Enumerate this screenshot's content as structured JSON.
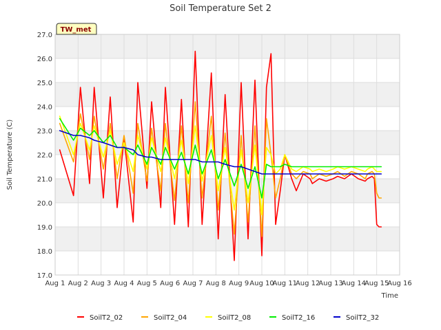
{
  "chart_data": {
    "type": "line",
    "title": "Soil Temperature Set 2",
    "xlabel": "Time",
    "ylabel": "Soil Temperature (C)",
    "site_label": "TW_met",
    "x_ticks": [
      "Aug 1",
      "Aug 2",
      "Aug 3",
      "Aug 4",
      "Aug 5",
      "Aug 6",
      "Aug 7",
      "Aug 8",
      "Aug 9",
      "Aug 10",
      "Aug 11",
      "Aug 12",
      "Aug 13",
      "Aug 14",
      "Aug 15",
      "Aug 16"
    ],
    "y_ticks": [
      "17.0",
      "18.0",
      "19.0",
      "20.0",
      "21.0",
      "22.0",
      "23.0",
      "24.0",
      "25.0",
      "26.0",
      "27.0"
    ],
    "ylim": [
      17,
      27
    ],
    "xlim_days": [
      1,
      16
    ],
    "grid": true,
    "background_bands": true,
    "legend_position": "bottom",
    "x": [
      1.2,
      1.8,
      2.1,
      2.5,
      2.7,
      3.1,
      3.4,
      3.7,
      4.0,
      4.4,
      4.6,
      5.0,
      5.2,
      5.6,
      5.8,
      6.2,
      6.5,
      6.8,
      7.1,
      7.4,
      7.8,
      8.1,
      8.4,
      8.8,
      9.1,
      9.4,
      9.7,
      10.0,
      10.2,
      10.4,
      10.6,
      10.8,
      11.0,
      11.3,
      11.5,
      11.8,
      12.1,
      12.2,
      12.5,
      12.8,
      13.1,
      13.3,
      13.6,
      13.9,
      14.2,
      14.5,
      14.6,
      14.8,
      14.9,
      15.0,
      15.1,
      15.2
    ],
    "series": [
      {
        "name": "SoilT2_02",
        "color": "#ff0000",
        "values": [
          22.2,
          20.3,
          24.8,
          20.8,
          24.8,
          20.2,
          24.4,
          19.8,
          22.7,
          19.2,
          25.0,
          20.6,
          24.2,
          19.8,
          24.8,
          19.1,
          24.3,
          19.0,
          26.3,
          19.1,
          25.4,
          18.5,
          24.5,
          17.6,
          25.0,
          18.5,
          25.1,
          17.8,
          24.8,
          26.2,
          19.1,
          20.5,
          22.0,
          21.0,
          20.5,
          21.2,
          21.0,
          20.8,
          21.0,
          20.9,
          21.0,
          21.1,
          21.0,
          21.2,
          21.0,
          20.9,
          21.0,
          21.1,
          21.0,
          19.1,
          19.0,
          19.0
        ]
      },
      {
        "name": "SoilT2_04",
        "color": "#ffa500",
        "values": [
          23.3,
          21.7,
          23.7,
          21.8,
          23.6,
          21.4,
          23.3,
          21.0,
          22.8,
          20.4,
          23.3,
          20.9,
          23.1,
          20.5,
          23.3,
          20.1,
          23.2,
          20.0,
          24.2,
          20.2,
          23.6,
          19.7,
          22.9,
          18.7,
          22.8,
          19.2,
          23.2,
          18.6,
          23.5,
          22.0,
          20.2,
          21.0,
          22.0,
          21.2,
          21.0,
          21.3,
          21.2,
          21.0,
          21.2,
          21.1,
          21.2,
          21.3,
          21.1,
          21.3,
          21.2,
          21.0,
          21.2,
          21.3,
          21.2,
          20.4,
          20.2,
          20.2
        ]
      },
      {
        "name": "SoilT2_08",
        "color": "#ffff00",
        "values": [
          23.6,
          22.0,
          23.3,
          22.2,
          23.2,
          21.9,
          23.0,
          21.6,
          22.5,
          21.3,
          22.8,
          21.4,
          22.7,
          21.3,
          22.7,
          21.0,
          22.6,
          20.8,
          23.2,
          20.9,
          22.8,
          20.5,
          22.3,
          19.7,
          22.2,
          20.0,
          22.4,
          19.5,
          22.3,
          22.0,
          21.2,
          21.4,
          22.0,
          21.4,
          21.3,
          21.5,
          21.4,
          21.3,
          21.4,
          21.3,
          21.4,
          21.5,
          21.4,
          21.5,
          21.4,
          21.3,
          21.4,
          21.5,
          21.4,
          21.3,
          21.3,
          21.3
        ]
      },
      {
        "name": "SoilT2_16",
        "color": "#00ee00",
        "values": [
          23.5,
          22.6,
          23.1,
          22.8,
          23.0,
          22.5,
          22.8,
          22.3,
          22.3,
          22.0,
          22.4,
          21.6,
          22.3,
          21.6,
          22.3,
          21.4,
          22.1,
          21.2,
          22.4,
          21.2,
          22.2,
          21.0,
          21.8,
          20.7,
          21.6,
          20.6,
          21.5,
          20.2,
          21.6,
          21.5,
          21.5,
          21.5,
          21.6,
          21.5,
          21.5,
          21.5,
          21.5,
          21.5,
          21.5,
          21.5,
          21.5,
          21.5,
          21.5,
          21.5,
          21.5,
          21.5,
          21.5,
          21.5,
          21.5,
          21.5,
          21.5,
          21.5
        ]
      },
      {
        "name": "SoilT2_32",
        "color": "#0000cc",
        "values": [
          23.0,
          22.8,
          22.8,
          22.7,
          22.6,
          22.5,
          22.4,
          22.3,
          22.3,
          22.2,
          22.0,
          21.9,
          21.9,
          21.8,
          21.8,
          21.8,
          21.8,
          21.8,
          21.8,
          21.7,
          21.7,
          21.7,
          21.6,
          21.5,
          21.5,
          21.4,
          21.3,
          21.2,
          21.2,
          21.2,
          21.2,
          21.2,
          21.2,
          21.2,
          21.2,
          21.2,
          21.2,
          21.2,
          21.2,
          21.2,
          21.2,
          21.2,
          21.2,
          21.2,
          21.2,
          21.2,
          21.2,
          21.2,
          21.2,
          21.2,
          21.2,
          21.2
        ]
      }
    ]
  }
}
